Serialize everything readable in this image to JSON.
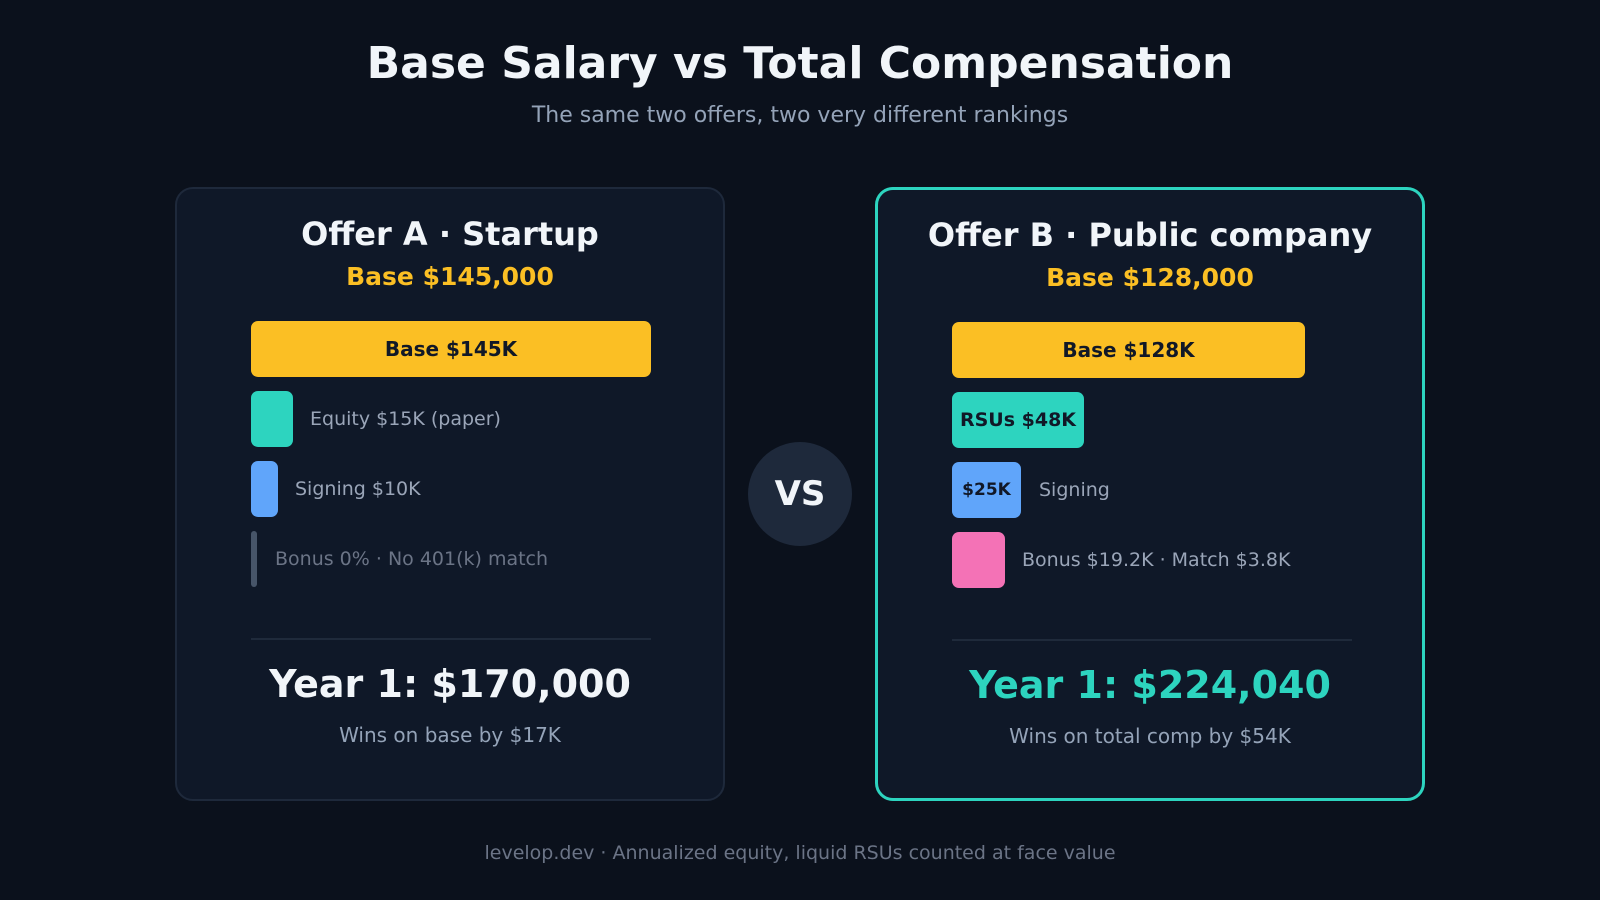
{
  "header": {
    "title": "Base Salary vs Total Compensation",
    "subtitle": "The same two offers, two very different rankings"
  },
  "vs_label": "VS",
  "offer_a": {
    "title": "Offer A · Startup",
    "base_line": "Base $145,000",
    "components": {
      "base": {
        "label": "Base $145K",
        "value_k": 145,
        "color": "#fbbf24"
      },
      "equity": {
        "label": "Equity $15K (paper)",
        "value_k": 15,
        "color": "#2dd4bf"
      },
      "signing": {
        "label": "Signing $10K",
        "value_k": 10,
        "color": "#60a5fa"
      },
      "bonus": {
        "label": "Bonus 0% · No 401(k) match",
        "value_k": 0,
        "color": "#475569"
      }
    },
    "year1": "Year 1: $170,000",
    "note": "Wins on base by $17K"
  },
  "offer_b": {
    "title": "Offer B · Public company",
    "base_line": "Base $128,000",
    "components": {
      "base": {
        "label": "Base $128K",
        "value_k": 128,
        "color": "#fbbf24"
      },
      "rsus": {
        "label": "RSUs $48K",
        "value_k": 48,
        "color": "#2dd4bf"
      },
      "signing": {
        "label": "$25K",
        "side_label": "Signing",
        "value_k": 25,
        "color": "#60a5fa"
      },
      "bonus": {
        "label": "Bonus $19.2K · Match $3.8K",
        "value_k": 23,
        "color": "#f472b6"
      }
    },
    "year1": "Year 1: $224,040",
    "note": "Wins on total comp by $54K",
    "highlight_color": "#2dd4bf"
  },
  "footer": "levelop.dev · Annualized equity, liquid RSUs counted at face value"
}
